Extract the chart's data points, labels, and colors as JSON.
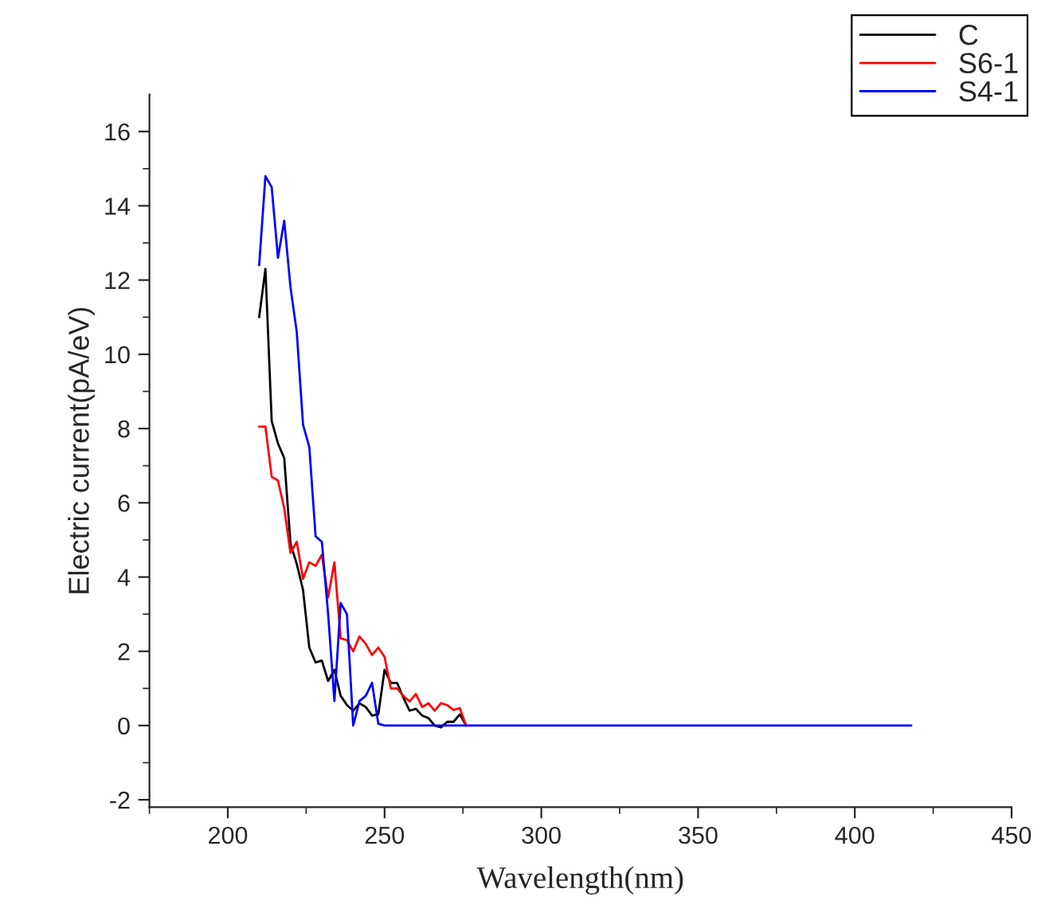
{
  "chart_data": {
    "type": "line",
    "xlabel": "Wavelength(nm)",
    "ylabel": "Electric current(pA/eV)",
    "xlim": [
      175,
      450
    ],
    "ylim": [
      -2.2,
      17
    ],
    "xticks": [
      200,
      250,
      300,
      350,
      400,
      450
    ],
    "yticks": [
      -2,
      0,
      2,
      4,
      6,
      8,
      10,
      12,
      14,
      16
    ],
    "grid": false,
    "legend": "top right",
    "marker": "none",
    "line_style": "solid",
    "series": [
      {
        "name": "C",
        "color": "#000000",
        "x": [
          210,
          212,
          214,
          216,
          218,
          220,
          222,
          224,
          226,
          228,
          230,
          232,
          234,
          236,
          238,
          240,
          242,
          244,
          246,
          248,
          250,
          252,
          254,
          256,
          258,
          260,
          262,
          264,
          266,
          268,
          270,
          272,
          274,
          276
        ],
        "values": [
          11.0,
          12.3,
          8.2,
          7.6,
          7.2,
          4.9,
          4.35,
          3.65,
          2.1,
          1.7,
          1.75,
          1.2,
          1.5,
          0.8,
          0.55,
          0.4,
          0.6,
          0.5,
          0.27,
          0.3,
          1.5,
          1.15,
          1.15,
          0.75,
          0.4,
          0.45,
          0.27,
          0.2,
          0,
          -0.05,
          0.1,
          0.1,
          0.3,
          0
        ]
      },
      {
        "name": "S6-1",
        "color": "#ff0000",
        "x": [
          210,
          212,
          214,
          216,
          218,
          220,
          222,
          224,
          226,
          228,
          230,
          232,
          234,
          236,
          238,
          240,
          242,
          244,
          246,
          248,
          250,
          252,
          254,
          256,
          258,
          260,
          262,
          264,
          266,
          268,
          270,
          272,
          274,
          276
        ],
        "values": [
          8.05,
          8.05,
          6.7,
          6.6,
          5.85,
          4.65,
          4.95,
          3.95,
          4.4,
          4.3,
          4.6,
          3.45,
          4.4,
          2.35,
          2.3,
          2.0,
          2.4,
          2.2,
          1.9,
          2.1,
          1.85,
          1.0,
          1.0,
          0.8,
          0.65,
          0.85,
          0.5,
          0.6,
          0.4,
          0.6,
          0.55,
          0.42,
          0.47,
          0
        ]
      },
      {
        "name": "S4-1",
        "color": "#0000ff",
        "x": [
          210,
          212,
          214,
          216,
          218,
          220,
          222,
          224,
          226,
          228,
          230,
          232,
          234,
          236,
          238,
          240,
          242,
          244,
          246,
          248,
          250,
          418
        ],
        "values": [
          12.4,
          14.8,
          14.5,
          12.6,
          13.6,
          11.8,
          10.6,
          8.1,
          7.5,
          5.1,
          4.95,
          3.0,
          0.66,
          3.3,
          3.0,
          0,
          0.66,
          0.8,
          1.15,
          0.05,
          0,
          0
        ]
      }
    ]
  }
}
